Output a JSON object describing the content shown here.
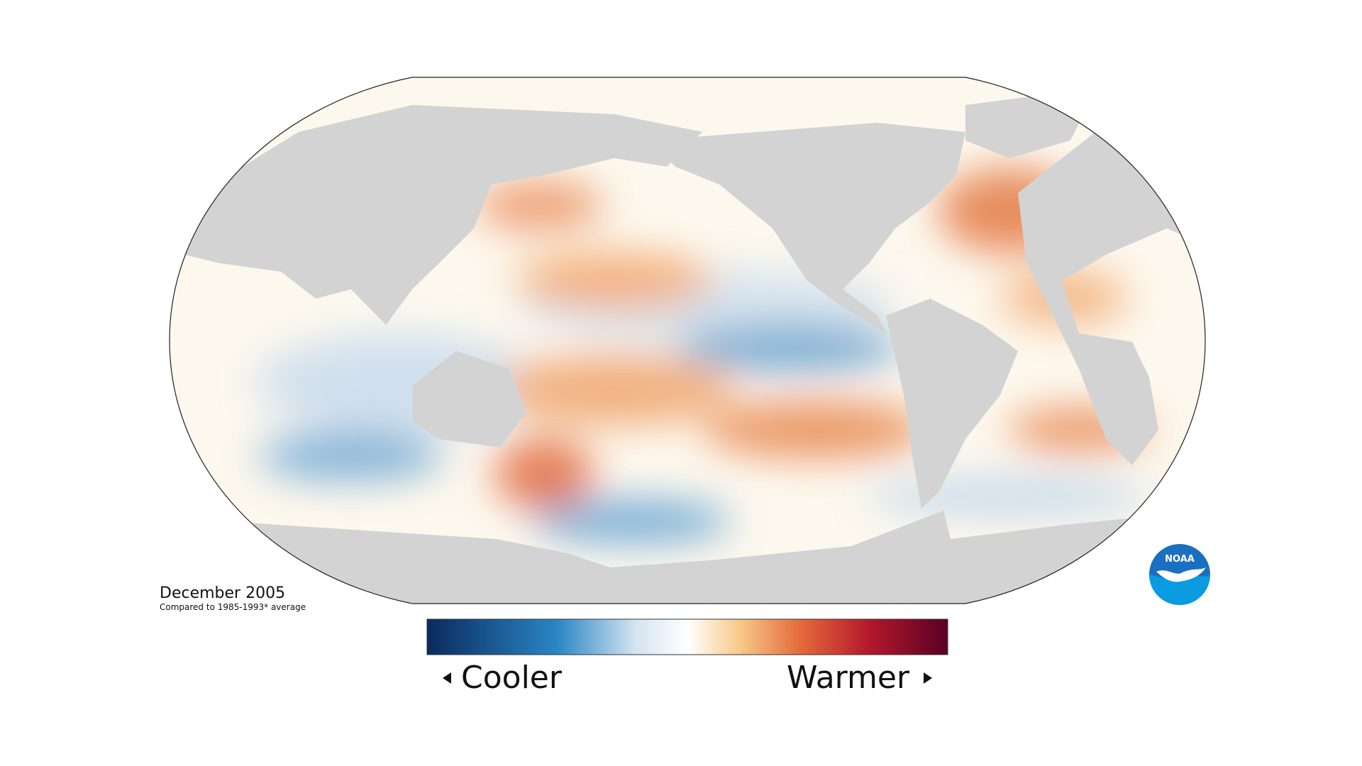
{
  "caption": {
    "title": "December 2005",
    "subtitle": "Compared to 1985-1993* average"
  },
  "legend": {
    "low": "Cooler",
    "high": "Warmer"
  },
  "logo": "NOAA"
}
